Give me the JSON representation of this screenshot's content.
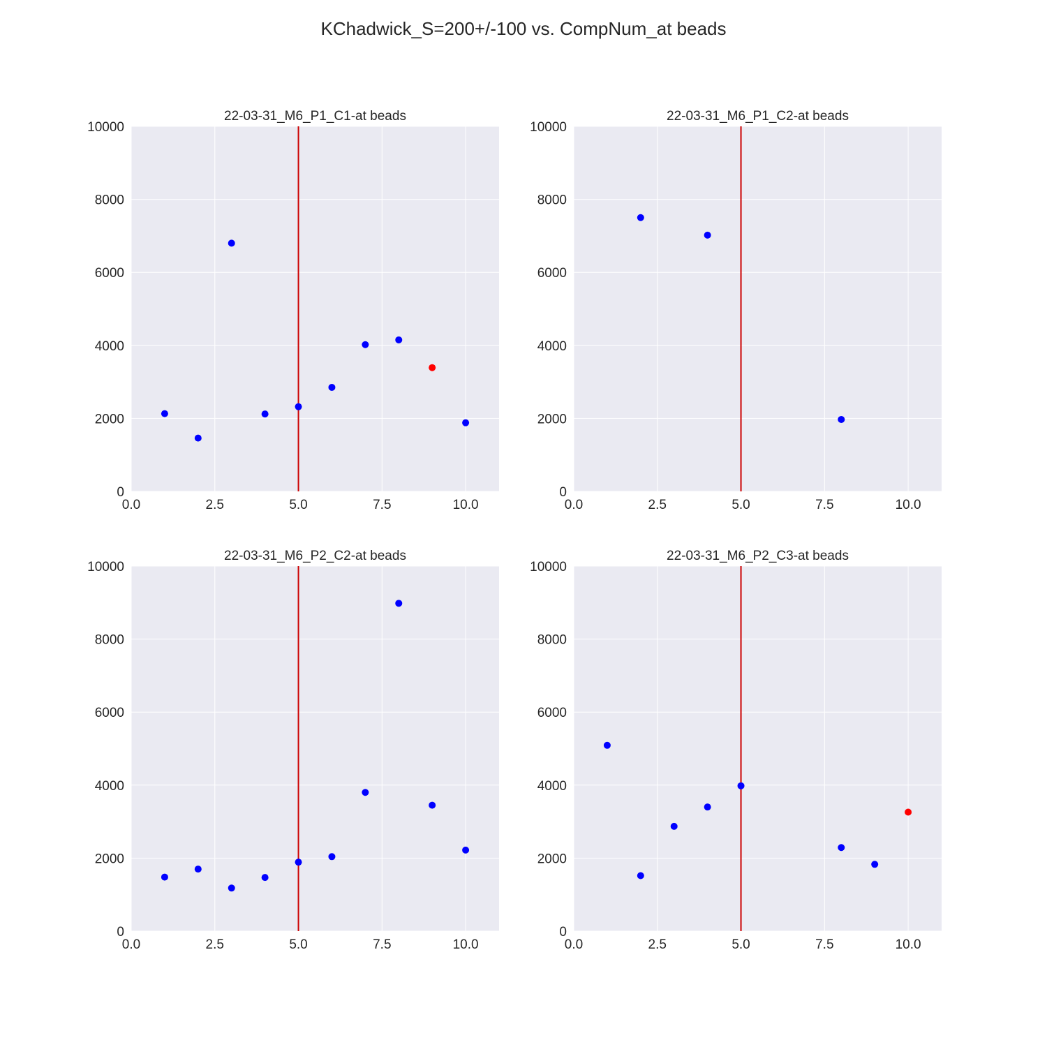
{
  "figure": {
    "title": "KChadwick_S=200+/-100 vs. CompNum_at beads"
  },
  "colors": {
    "plot_background": "#eaeaf2",
    "grid": "#ffffff",
    "point_default": "#0000ff",
    "point_highlight": "#ff0000",
    "reference_line": "#cc0000",
    "text": "#262626"
  },
  "chart_data": [
    {
      "type": "scatter",
      "title": "22-03-31_M6_P1_C1-at beads",
      "xlabel": "",
      "ylabel": "",
      "xlim": [
        0,
        11
      ],
      "ylim": [
        0,
        10000
      ],
      "xticks": [
        "0.0",
        "2.5",
        "5.0",
        "7.5",
        "10.0"
      ],
      "yticks": [
        "0",
        "2000",
        "4000",
        "6000",
        "8000",
        "10000"
      ],
      "grid": true,
      "vline_x": 5,
      "points": [
        {
          "x": 1,
          "y": 2130,
          "color": "blue"
        },
        {
          "x": 2,
          "y": 1460,
          "color": "blue"
        },
        {
          "x": 3,
          "y": 6800,
          "color": "blue"
        },
        {
          "x": 4,
          "y": 2120,
          "color": "blue"
        },
        {
          "x": 5,
          "y": 2320,
          "color": "blue"
        },
        {
          "x": 6,
          "y": 2850,
          "color": "blue"
        },
        {
          "x": 7,
          "y": 4020,
          "color": "blue"
        },
        {
          "x": 8,
          "y": 4150,
          "color": "blue"
        },
        {
          "x": 9,
          "y": 3390,
          "color": "red"
        },
        {
          "x": 10,
          "y": 1880,
          "color": "blue"
        }
      ]
    },
    {
      "type": "scatter",
      "title": "22-03-31_M6_P1_C2-at beads",
      "xlabel": "",
      "ylabel": "",
      "xlim": [
        0,
        11
      ],
      "ylim": [
        0,
        10000
      ],
      "xticks": [
        "0.0",
        "2.5",
        "5.0",
        "7.5",
        "10.0"
      ],
      "yticks": [
        "0",
        "2000",
        "4000",
        "6000",
        "8000",
        "10000"
      ],
      "grid": true,
      "vline_x": 5,
      "points": [
        {
          "x": 2,
          "y": 7500,
          "color": "blue"
        },
        {
          "x": 4,
          "y": 7020,
          "color": "blue"
        },
        {
          "x": 8,
          "y": 1970,
          "color": "blue"
        }
      ]
    },
    {
      "type": "scatter",
      "title": "22-03-31_M6_P2_C2-at beads",
      "xlabel": "",
      "ylabel": "",
      "xlim": [
        0,
        11
      ],
      "ylim": [
        0,
        10000
      ],
      "xticks": [
        "0.0",
        "2.5",
        "5.0",
        "7.5",
        "10.0"
      ],
      "yticks": [
        "0",
        "2000",
        "4000",
        "6000",
        "8000",
        "10000"
      ],
      "grid": true,
      "vline_x": 5,
      "points": [
        {
          "x": 1,
          "y": 1480,
          "color": "blue"
        },
        {
          "x": 2,
          "y": 1700,
          "color": "blue"
        },
        {
          "x": 3,
          "y": 1180,
          "color": "blue"
        },
        {
          "x": 4,
          "y": 1470,
          "color": "blue"
        },
        {
          "x": 5,
          "y": 1890,
          "color": "blue"
        },
        {
          "x": 6,
          "y": 2040,
          "color": "blue"
        },
        {
          "x": 7,
          "y": 3800,
          "color": "blue"
        },
        {
          "x": 8,
          "y": 8980,
          "color": "blue"
        },
        {
          "x": 9,
          "y": 3450,
          "color": "blue"
        },
        {
          "x": 10,
          "y": 2220,
          "color": "blue"
        }
      ]
    },
    {
      "type": "scatter",
      "title": "22-03-31_M6_P2_C3-at beads",
      "xlabel": "",
      "ylabel": "",
      "xlim": [
        0,
        11
      ],
      "ylim": [
        0,
        10000
      ],
      "xticks": [
        "0.0",
        "2.5",
        "5.0",
        "7.5",
        "10.0"
      ],
      "yticks": [
        "0",
        "2000",
        "4000",
        "6000",
        "8000",
        "10000"
      ],
      "grid": true,
      "vline_x": 5,
      "points": [
        {
          "x": 1,
          "y": 5090,
          "color": "blue"
        },
        {
          "x": 2,
          "y": 1520,
          "color": "blue"
        },
        {
          "x": 3,
          "y": 2870,
          "color": "blue"
        },
        {
          "x": 4,
          "y": 3400,
          "color": "blue"
        },
        {
          "x": 5,
          "y": 3980,
          "color": "blue"
        },
        {
          "x": 8,
          "y": 2290,
          "color": "blue"
        },
        {
          "x": 9,
          "y": 1830,
          "color": "blue"
        },
        {
          "x": 10,
          "y": 3260,
          "color": "red"
        }
      ]
    }
  ]
}
